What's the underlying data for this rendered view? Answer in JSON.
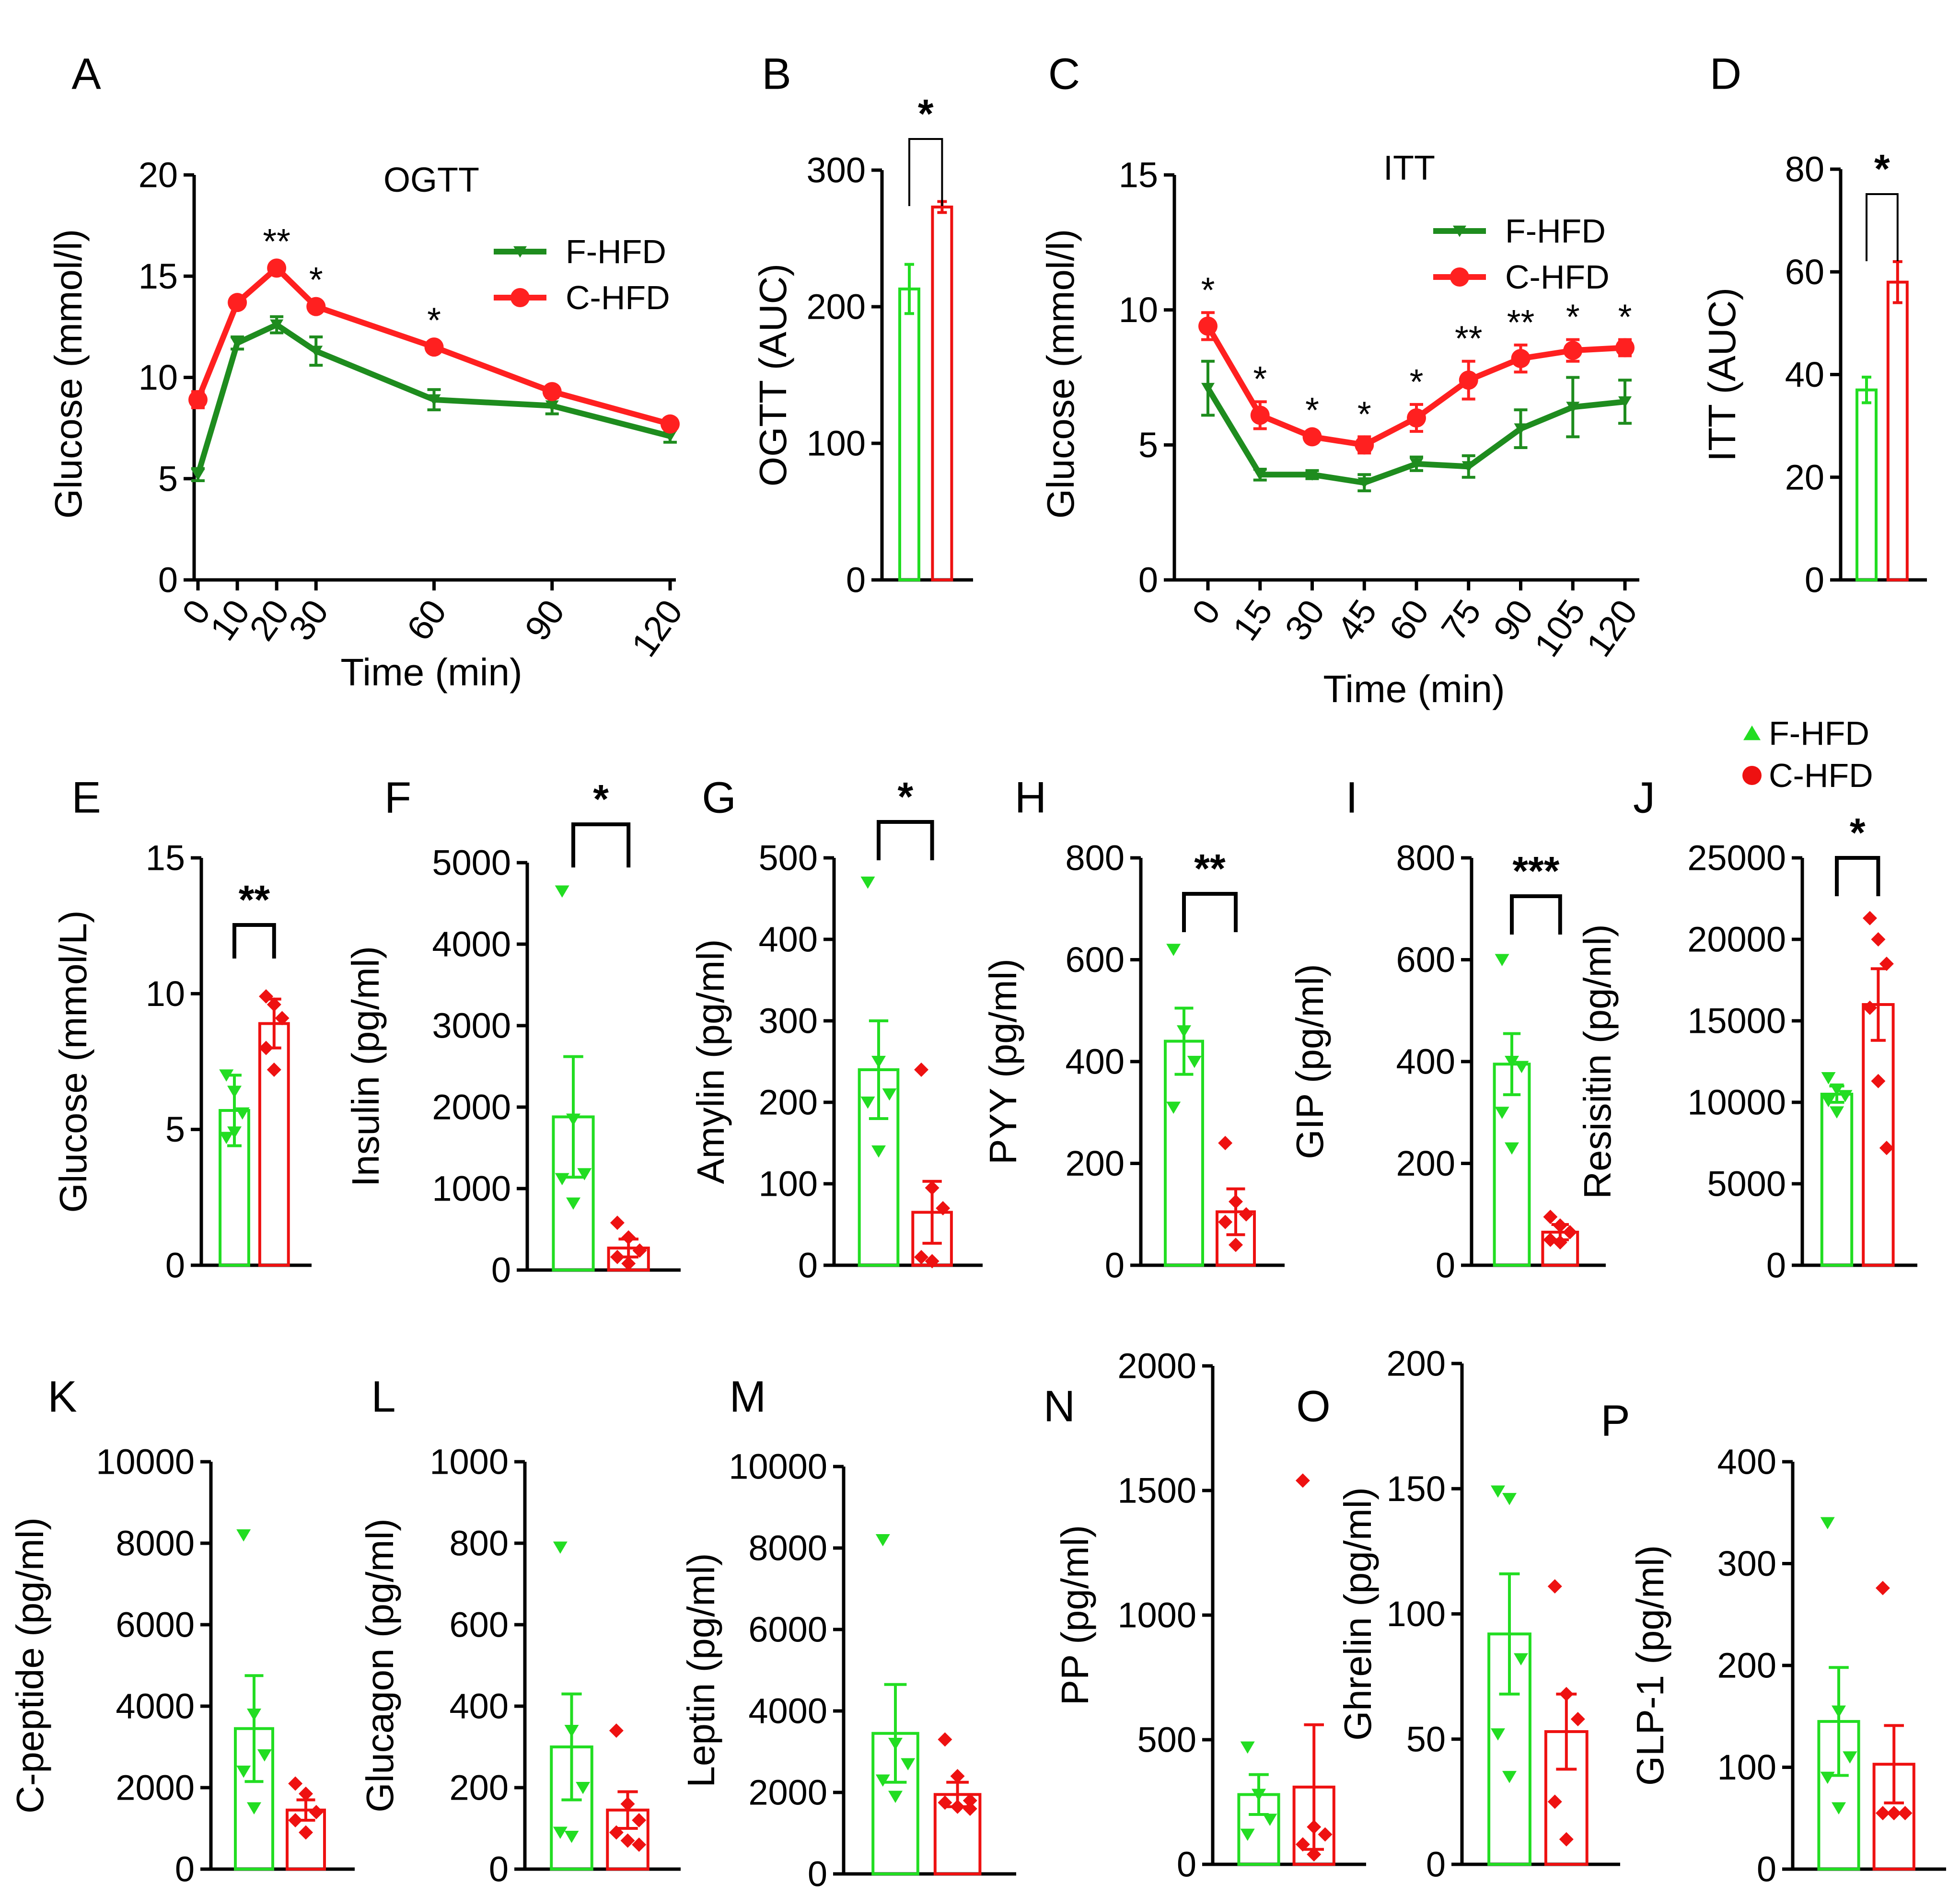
{
  "colors": {
    "f_hfd": "#1e8c1e",
    "c_hfd": "#ff2020",
    "f_scatter": "#22dd22",
    "c_scatter": "#ee1111"
  },
  "chart_data": [
    {
      "panel": "A",
      "type": "line",
      "title": "OGTT",
      "xlabel": "Time (min)",
      "ylabel": "Glucose (mmol/l)",
      "x": [
        0,
        10,
        20,
        30,
        60,
        90,
        120
      ],
      "x_tick_labels": [
        "0",
        "10",
        "20",
        "30",
        "60",
        "90",
        "120"
      ],
      "xlim": [
        0,
        120
      ],
      "ylim": [
        0,
        20
      ],
      "y_ticks": [
        "0",
        "5",
        "10",
        "15",
        "20"
      ],
      "series": [
        {
          "name": "F-HFD",
          "values": [
            5.2,
            11.7,
            12.6,
            11.3,
            8.9,
            8.6,
            7.1
          ],
          "err": [
            0.3,
            0.3,
            0.4,
            0.7,
            0.5,
            0.4,
            0.3
          ]
        },
        {
          "name": "C-HFD",
          "values": [
            8.9,
            13.7,
            15.4,
            13.5,
            11.5,
            9.3,
            7.7
          ],
          "err": [
            0.4,
            0.2,
            0.2,
            0.2,
            0.2,
            0.1,
            0.1
          ]
        }
      ],
      "annotations": [
        {
          "x": 20,
          "text": "**"
        },
        {
          "x": 30,
          "text": "*"
        },
        {
          "x": 60,
          "text": "*"
        }
      ]
    },
    {
      "panel": "B",
      "type": "bar",
      "ylabel": "OGTT (AUC)",
      "categories": [
        "F-HFD",
        "C-HFD"
      ],
      "values": [
        213,
        273
      ],
      "err": [
        18,
        4
      ],
      "ylim": [
        0,
        300
      ],
      "y_ticks": [
        "0",
        "100",
        "200",
        "300"
      ],
      "significance": "*"
    },
    {
      "panel": "C",
      "type": "line",
      "title": "ITT",
      "xlabel": "Time (min)",
      "ylabel": "Glucose (mmol/l)",
      "x": [
        0,
        15,
        30,
        45,
        60,
        75,
        90,
        105,
        120
      ],
      "x_tick_labels": [
        "0",
        "15",
        "30",
        "45",
        "60",
        "75",
        "90",
        "105",
        "120"
      ],
      "xlim": [
        0,
        120
      ],
      "ylim": [
        0,
        15
      ],
      "y_ticks": [
        "0",
        "5",
        "10",
        "15"
      ],
      "series": [
        {
          "name": "F-HFD",
          "values": [
            7.1,
            3.9,
            3.9,
            3.6,
            4.3,
            4.2,
            5.6,
            6.4,
            6.6
          ],
          "err": [
            1.0,
            0.2,
            0.15,
            0.3,
            0.25,
            0.4,
            0.7,
            1.1,
            0.8
          ]
        },
        {
          "name": "C-HFD",
          "values": [
            9.4,
            6.1,
            5.3,
            5.0,
            6.0,
            7.4,
            8.2,
            8.5,
            8.6
          ],
          "err": [
            0.5,
            0.5,
            0.15,
            0.3,
            0.5,
            0.7,
            0.5,
            0.4,
            0.3
          ]
        }
      ],
      "annotations": [
        {
          "x": 0,
          "text": "*"
        },
        {
          "x": 15,
          "text": "*"
        },
        {
          "x": 30,
          "text": "*"
        },
        {
          "x": 45,
          "text": "*"
        },
        {
          "x": 60,
          "text": "*"
        },
        {
          "x": 75,
          "text": "**"
        },
        {
          "x": 90,
          "text": "**"
        },
        {
          "x": 105,
          "text": "*"
        },
        {
          "x": 120,
          "text": "*"
        }
      ]
    },
    {
      "panel": "D",
      "type": "bar",
      "ylabel": "ITT (AUC)",
      "categories": [
        "F-HFD",
        "C-HFD"
      ],
      "values": [
        37,
        58
      ],
      "err": [
        2.5,
        4
      ],
      "ylim": [
        0,
        80
      ],
      "y_ticks": [
        "0",
        "20",
        "40",
        "60",
        "80"
      ],
      "significance": "*"
    },
    {
      "panel": "E",
      "type": "bar",
      "ylabel": "Glucose (mmol/L)",
      "categories": [
        "F-HFD",
        "C-HFD"
      ],
      "values": [
        5.7,
        8.9
      ],
      "err": [
        1.3,
        0.9
      ],
      "points": [
        [
          7.0,
          6.4,
          5.6,
          4.7,
          4.9
        ],
        [
          9.9,
          9.6,
          9.1,
          8.0,
          7.2
        ]
      ],
      "ylim": [
        0,
        15
      ],
      "y_ticks": [
        "0",
        "5",
        "10",
        "15"
      ],
      "significance": "**"
    },
    {
      "panel": "F",
      "type": "bar",
      "ylabel": "Insulin (pg/ml)",
      "categories": [
        "F-HFD",
        "C-HFD"
      ],
      "values": [
        1880,
        270
      ],
      "err": [
        740,
        110
      ],
      "points": [
        [
          4650,
          1850,
          1180,
          1120,
          820
        ],
        [
          580,
          400,
          240,
          160,
          80
        ]
      ],
      "ylim": [
        0,
        5000
      ],
      "y_ticks": [
        "0",
        "1000",
        "2000",
        "3000",
        "4000",
        "5000"
      ],
      "significance": "*"
    },
    {
      "panel": "G",
      "type": "bar",
      "ylabel": "Amylin (pg/ml)",
      "categories": [
        "F-HFD",
        "C-HFD"
      ],
      "values": [
        240,
        65
      ],
      "err": [
        60,
        38
      ],
      "points": [
        [
          470,
          250,
          210,
          200,
          140
        ],
        [
          240,
          95,
          70,
          10,
          5
        ]
      ],
      "ylim": [
        0,
        500
      ],
      "y_ticks": [
        "0",
        "100",
        "200",
        "300",
        "400",
        "500"
      ],
      "significance": "*"
    },
    {
      "panel": "H",
      "type": "bar",
      "ylabel": "PYY (pg/ml)",
      "categories": [
        "F-HFD",
        "C-HFD"
      ],
      "values": [
        440,
        105
      ],
      "err": [
        65,
        45
      ],
      "points": [
        [
          620,
          460,
          400,
          310
        ],
        [
          240,
          125,
          100,
          85,
          40
        ]
      ],
      "ylim": [
        0,
        800
      ],
      "y_ticks": [
        "0",
        "200",
        "400",
        "600",
        "800"
      ],
      "significance": "**"
    },
    {
      "panel": "I",
      "type": "bar",
      "ylabel": "GIP (pg/ml)",
      "categories": [
        "F-HFD",
        "C-HFD"
      ],
      "values": [
        395,
        65
      ],
      "err": [
        60,
        15
      ],
      "points": [
        [
          600,
          400,
          390,
          300,
          230
        ],
        [
          95,
          78,
          65,
          50,
          45
        ]
      ],
      "ylim": [
        0,
        800
      ],
      "y_ticks": [
        "0",
        "200",
        "400",
        "600",
        "800"
      ],
      "significance": "***"
    },
    {
      "panel": "J",
      "type": "bar",
      "ylabel": "Resisitin (pg/ml)",
      "categories": [
        "F-HFD",
        "C-HFD"
      ],
      "values": [
        10500,
        16000
      ],
      "err": [
        500,
        2200
      ],
      "points": [
        [
          11500,
          10800,
          10400,
          10100,
          9400
        ],
        [
          21300,
          20000,
          18500,
          15800,
          11300,
          7200
        ]
      ],
      "ylim": [
        0,
        25000
      ],
      "y_ticks": [
        "0",
        "5000",
        "10000",
        "15000",
        "20000",
        "25000"
      ],
      "significance": "*",
      "legend": [
        "F-HFD",
        "C-HFD"
      ]
    },
    {
      "panel": "K",
      "type": "bar",
      "ylabel": "C-peptide (pg/ml)",
      "categories": [
        "F-HFD",
        "C-HFD"
      ],
      "values": [
        3450,
        1450
      ],
      "err": [
        1300,
        250
      ],
      "points": [
        [
          8200,
          3800,
          2800,
          2400,
          1500
        ],
        [
          2100,
          1850,
          1400,
          1200,
          900
        ]
      ],
      "ylim": [
        0,
        10000
      ],
      "y_ticks": [
        "0",
        "2000",
        "4000",
        "6000",
        "8000",
        "10000"
      ]
    },
    {
      "panel": "L",
      "type": "bar",
      "ylabel": "Glucagon (pg/ml)",
      "categories": [
        "F-HFD",
        "C-HFD"
      ],
      "values": [
        300,
        145
      ],
      "err": [
        130,
        45
      ],
      "points": [
        [
          790,
          340,
          200,
          90,
          80
        ],
        [
          340,
          160,
          120,
          90,
          70,
          60
        ]
      ],
      "ylim": [
        0,
        1000
      ],
      "y_ticks": [
        "0",
        "200",
        "400",
        "600",
        "800",
        "1000"
      ]
    },
    {
      "panel": "M",
      "type": "bar",
      "ylabel": "Leptin (pg/ml)",
      "categories": [
        "F-HFD",
        "C-HFD"
      ],
      "values": [
        3450,
        1950
      ],
      "err": [
        1200,
        300
      ],
      "points": [
        [
          8200,
          3200,
          2700,
          2300,
          1900
        ],
        [
          3300,
          2400,
          1800,
          1750,
          1650,
          1600
        ]
      ],
      "ylim": [
        0,
        10000
      ],
      "y_ticks": [
        "0",
        "2000",
        "4000",
        "6000",
        "8000",
        "10000"
      ]
    },
    {
      "panel": "N",
      "type": "bar",
      "ylabel": "PP (pg/ml)",
      "categories": [
        "F-HFD",
        "C-HFD"
      ],
      "values": [
        280,
        310
      ],
      "err": [
        80,
        250
      ],
      "points": [
        [
          470,
          280,
          180,
          120
        ],
        [
          1540,
          150,
          120,
          80,
          40
        ]
      ],
      "ylim": [
        0,
        2000
      ],
      "y_ticks": [
        "0",
        "500",
        "1000",
        "1500",
        "2000"
      ]
    },
    {
      "panel": "O",
      "type": "bar",
      "ylabel": "Ghrelin (pg/ml)",
      "categories": [
        "F-HFD",
        "C-HFD"
      ],
      "values": [
        92,
        53
      ],
      "err": [
        24,
        15
      ],
      "points": [
        [
          149,
          146,
          82,
          52,
          35
        ],
        [
          111,
          68,
          58,
          25,
          10
        ]
      ],
      "ylim": [
        0,
        200
      ],
      "y_ticks": [
        "0",
        "50",
        "100",
        "150",
        "200"
      ]
    },
    {
      "panel": "P",
      "type": "bar",
      "ylabel": "GLP-1 (pg/ml)",
      "categories": [
        "F-HFD",
        "C-HFD"
      ],
      "values": [
        145,
        103
      ],
      "err": [
        53,
        38
      ],
      "points": [
        [
          340,
          155,
          110,
          90,
          60
        ],
        [
          276,
          55,
          55,
          55,
          55
        ]
      ],
      "ylim": [
        0,
        400
      ],
      "y_ticks": [
        "0",
        "100",
        "200",
        "300",
        "400"
      ]
    }
  ]
}
